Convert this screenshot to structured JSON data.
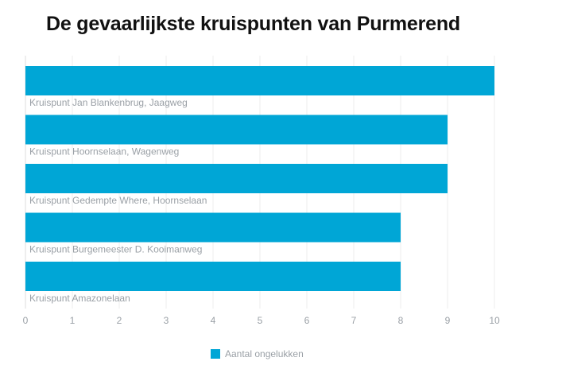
{
  "chart_data": {
    "type": "bar",
    "orientation": "horizontal",
    "title": "De gevaarlijkste kruispunten van Purmerend",
    "categories": [
      "Kruispunt Jan Blankenbrug, Jaagweg",
      "Kruispunt Hoornselaan, Wagenweg",
      "Kruispunt Gedempte Where, Hoornselaan",
      "Kruispunt Burgemeester D. Kooimanweg",
      "Kruispunt Amazonelaan"
    ],
    "series": [
      {
        "name": "Aantal ongelukken",
        "values": [
          10,
          9,
          9,
          8,
          8
        ],
        "color": "#00a6d6"
      }
    ],
    "xlim": [
      0,
      10
    ],
    "xticks": [
      "0",
      "1",
      "2",
      "3",
      "4",
      "5",
      "6",
      "7",
      "8",
      "9",
      "10"
    ],
    "xlabel": "",
    "ylabel": "",
    "grid": "vertical",
    "legend_position": "bottom"
  },
  "colors": {
    "bar": "#00a6d6",
    "gridline": "#ececec",
    "axis_text": "#9aa0a6",
    "title": "#111111"
  }
}
